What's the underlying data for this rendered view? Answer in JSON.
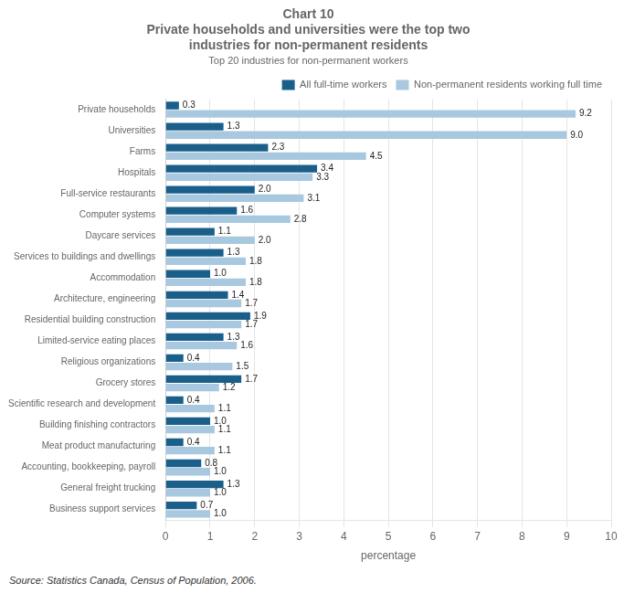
{
  "chart_data": {
    "type": "bar",
    "orientation": "horizontal",
    "title": [
      "Chart 10",
      "Private households and universities were the top two",
      "industries for non-permanent residents"
    ],
    "subtitle": "Top 20 industries for non-permanent workers",
    "annotations": [
      "Source: Statistics Canada, Census of Population, 2006."
    ],
    "x_label": "percentage",
    "categories": [
      "Private households",
      "Universities",
      "Farms",
      "Hospitals",
      "Full-service restaurants",
      "Computer systems",
      "Daycare services",
      "Services to buildings and dwellings",
      "Accommodation",
      "Architecture, engineering",
      "Residential building construction",
      "Limited-service eating places",
      "Religious organizations",
      "Grocery stores",
      "Scientific research and development",
      "Building finishing contractors",
      "Meat product manufacturing",
      "Accounting, bookkeeping, payroll",
      "General freight trucking",
      "Business support services"
    ],
    "series": [
      {
        "name": "All full-time workers",
        "color": "#1a5e8a",
        "values": [
          0.3,
          1.3,
          2.3,
          3.4,
          2.0,
          1.6,
          1.1,
          1.3,
          1.0,
          1.4,
          1.9,
          1.3,
          0.4,
          1.7,
          0.4,
          1.0,
          0.4,
          0.8,
          1.3,
          0.7
        ],
        "value_labels": [
          "0.3",
          "1.3",
          "2.3",
          "3.4",
          "2.0",
          "1.6",
          "1.1",
          "1.3",
          "1.0",
          "1.4",
          "1.9",
          "1.3",
          "0.4",
          "1.7",
          "0.4",
          "1.0",
          "0.4",
          "0.8",
          "1.3",
          "0.7"
        ]
      },
      {
        "name": "Non-permanent residents\nworking full time",
        "color": "#a8c8e0",
        "values": [
          9.2,
          9.0,
          4.5,
          3.3,
          3.1,
          2.8,
          2.0,
          1.8,
          1.8,
          1.7,
          1.7,
          1.6,
          1.5,
          1.2,
          1.1,
          1.1,
          1.1,
          1.0,
          1.0,
          1.0
        ],
        "value_labels": [
          "9.2",
          "9.0",
          "4.5",
          "3.3",
          "3.1",
          "2.8",
          "2.0",
          "1.8",
          "1.8",
          "1.7",
          "1.7",
          "1.6",
          "1.5",
          "1.2",
          "1.1",
          "1.1",
          "1.1",
          "1.0",
          "1.0",
          "1.0"
        ]
      }
    ],
    "xlim": [
      0,
      10
    ],
    "xticks": [
      0,
      1,
      2,
      3,
      4,
      5,
      6,
      7,
      8,
      9,
      10
    ],
    "grid": "x",
    "legend": "upper right",
    "data_labels": true
  }
}
